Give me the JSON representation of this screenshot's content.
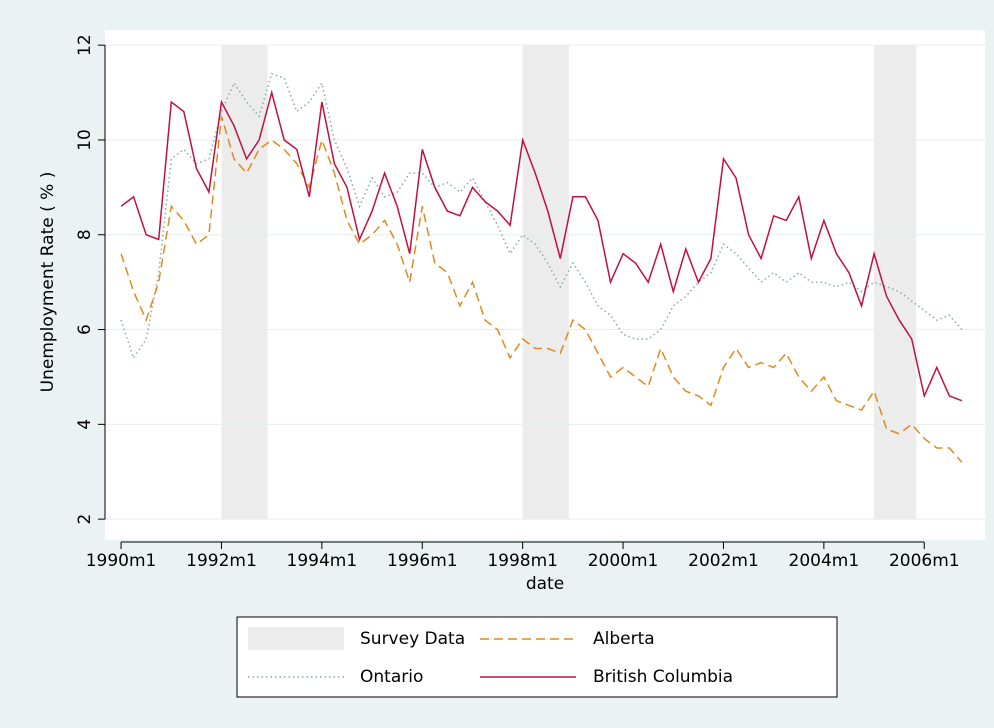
{
  "chart_data": {
    "type": "line",
    "y_label": "Unemployment Rate ( % )",
    "x_label": "date",
    "survey_label": "Survey Data",
    "survey_periods": [
      [
        1992,
        1992.92
      ],
      [
        1998,
        1998.92
      ],
      [
        2005,
        2005.84
      ]
    ],
    "survey_color": "#ececec",
    "x": [
      1990,
      1990.25,
      1990.5,
      1990.75,
      1991,
      1991.25,
      1991.5,
      1991.75,
      1992,
      1992.25,
      1992.5,
      1992.75,
      1993,
      1993.25,
      1993.5,
      1993.75,
      1994,
      1994.25,
      1994.5,
      1994.75,
      1995,
      1995.25,
      1995.5,
      1995.75,
      1996,
      1996.25,
      1996.5,
      1996.75,
      1997,
      1997.25,
      1997.5,
      1997.75,
      1998,
      1998.25,
      1998.5,
      1998.75,
      1999,
      1999.25,
      1999.5,
      1999.75,
      2000,
      2000.25,
      2000.5,
      2000.75,
      2001,
      2001.25,
      2001.5,
      2001.75,
      2002,
      2002.25,
      2002.5,
      2002.75,
      2003,
      2003.25,
      2003.5,
      2003.75,
      2004,
      2004.25,
      2004.5,
      2004.75,
      2005,
      2005.25,
      2005.5,
      2005.75,
      2006,
      2006.25,
      2006.5,
      2006.75
    ],
    "series": [
      {
        "name": "Ontario",
        "color": "#8aa8a8",
        "dash": "dotted",
        "values": [
          6.2,
          5.4,
          5.8,
          7.2,
          9.6,
          9.8,
          9.5,
          9.6,
          10.6,
          11.2,
          10.8,
          10.5,
          11.4,
          11.3,
          10.6,
          10.8,
          11.2,
          10.0,
          9.4,
          8.6,
          9.2,
          8.8,
          8.9,
          9.3,
          9.3,
          9.0,
          9.1,
          8.9,
          9.2,
          8.7,
          8.2,
          7.6,
          8.0,
          7.8,
          7.4,
          6.9,
          7.4,
          7.0,
          6.5,
          6.3,
          5.9,
          5.8,
          5.8,
          6.0,
          6.5,
          6.7,
          7.0,
          7.2,
          7.8,
          7.6,
          7.3,
          7.0,
          7.2,
          7.0,
          7.2,
          7.0,
          7.0,
          6.9,
          7.0,
          6.8,
          7.0,
          6.9,
          6.8,
          6.6,
          6.4,
          6.2,
          6.3,
          6.0
        ]
      },
      {
        "name": "Alberta",
        "color": "#e08a1e",
        "dash": "dashed",
        "values": [
          7.6,
          6.8,
          6.2,
          7.0,
          8.6,
          8.3,
          7.8,
          8.0,
          10.5,
          9.6,
          9.3,
          9.8,
          10.0,
          9.8,
          9.5,
          9.0,
          10.0,
          9.3,
          8.3,
          7.8,
          8.0,
          8.3,
          7.8,
          7.0,
          8.6,
          7.4,
          7.2,
          6.5,
          7.0,
          6.2,
          6.0,
          5.4,
          5.8,
          5.6,
          5.6,
          5.5,
          6.2,
          6.0,
          5.5,
          5.0,
          5.2,
          5.0,
          4.8,
          5.6,
          5.0,
          4.7,
          4.6,
          4.4,
          5.2,
          5.6,
          5.2,
          5.3,
          5.2,
          5.5,
          5.0,
          4.7,
          5.0,
          4.5,
          4.4,
          4.3,
          4.7,
          3.9,
          3.8,
          4.0,
          3.7,
          3.5,
          3.5,
          3.2
        ]
      },
      {
        "name": "British Columbia",
        "color": "#c0103c",
        "dash": "solid",
        "values": [
          8.6,
          8.8,
          8.0,
          7.9,
          10.8,
          10.6,
          9.4,
          8.9,
          10.8,
          10.3,
          9.6,
          10.0,
          11.0,
          10.0,
          9.8,
          8.8,
          10.8,
          9.5,
          9.0,
          7.9,
          8.5,
          9.3,
          8.6,
          7.6,
          9.8,
          9.0,
          8.5,
          8.4,
          9.0,
          8.7,
          8.5,
          8.2,
          10.0,
          9.3,
          8.5,
          7.5,
          8.8,
          8.8,
          8.3,
          7.0,
          7.6,
          7.4,
          7.0,
          7.8,
          6.8,
          7.7,
          7.0,
          7.5,
          9.6,
          9.2,
          8.0,
          7.5,
          8.4,
          8.3,
          8.8,
          7.5,
          8.3,
          7.6,
          7.2,
          6.5,
          7.6,
          6.7,
          6.2,
          5.8,
          4.6,
          5.2,
          4.6,
          4.5
        ]
      }
    ],
    "xlim": [
      1989.68,
      2007.21
    ],
    "xticks": [
      {
        "value": 1990,
        "label": "1990m1"
      },
      {
        "value": 1992,
        "label": "1992m1"
      },
      {
        "value": 1994,
        "label": "1994m1"
      },
      {
        "value": 1996,
        "label": "1996m1"
      },
      {
        "value": 1998,
        "label": "1998m1"
      },
      {
        "value": 2000,
        "label": "2000m1"
      },
      {
        "value": 2002,
        "label": "2002m1"
      },
      {
        "value": 2004,
        "label": "2004m1"
      },
      {
        "value": 2006,
        "label": "2006m1"
      }
    ],
    "ylim": [
      1.56,
      12.32
    ],
    "yticks": [
      2,
      4,
      6,
      8,
      10,
      12
    ],
    "grid": true,
    "legend": "bottom"
  }
}
